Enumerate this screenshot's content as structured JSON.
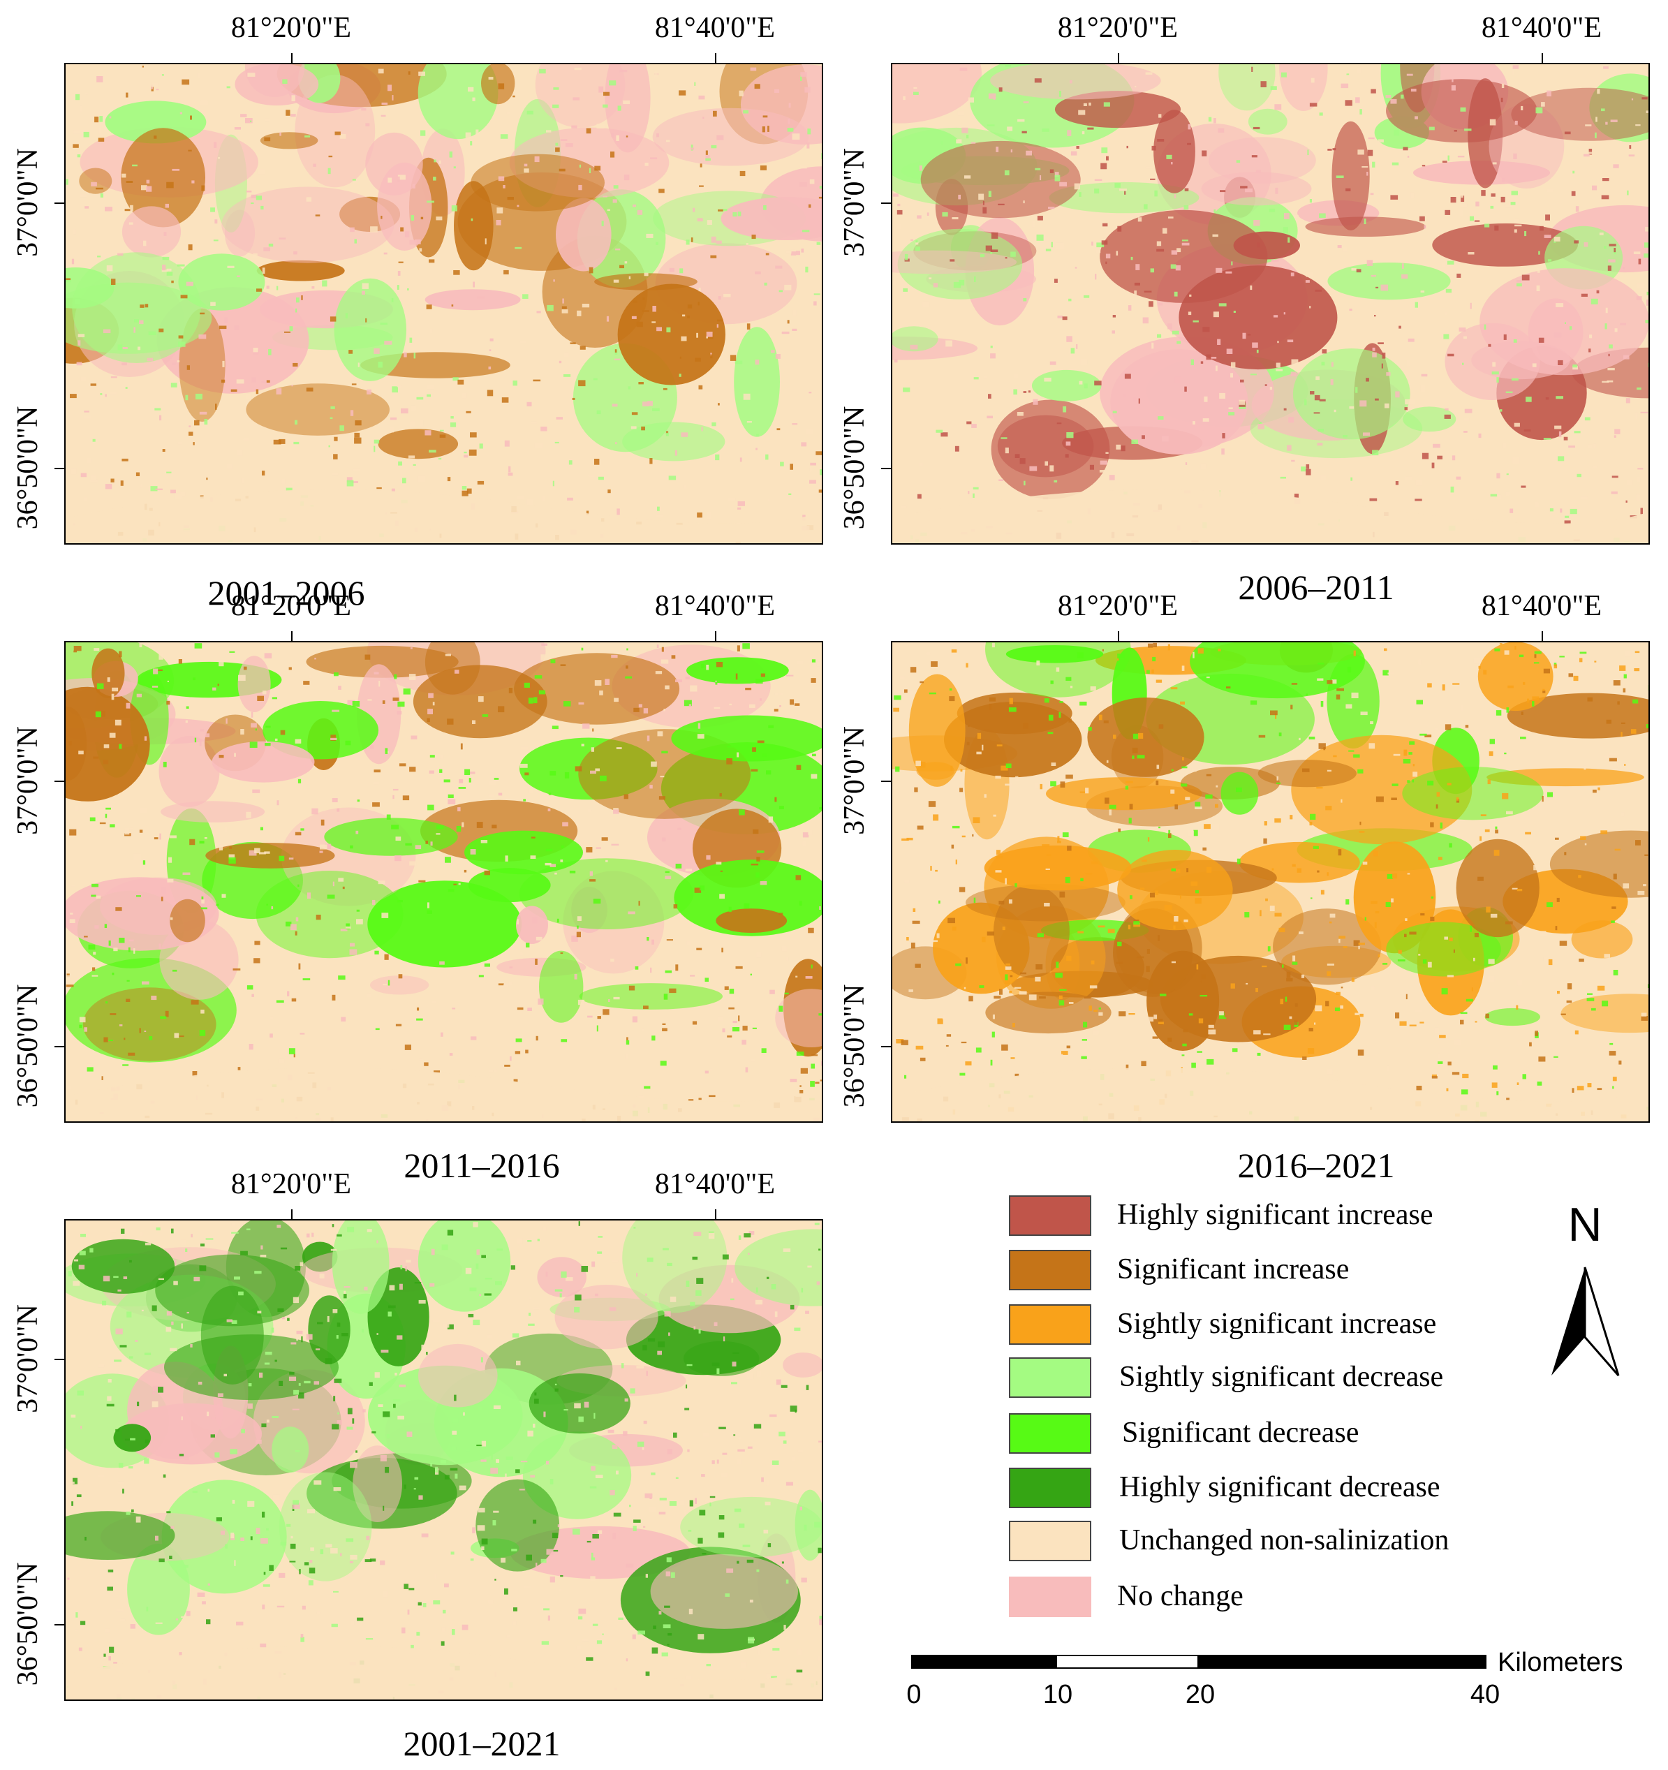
{
  "axes": {
    "lon_ticks": [
      "81°20'0\"E",
      "81°40'0\"E"
    ],
    "lat_ticks": [
      "37°0'0\"N",
      "36°50'0\"N"
    ]
  },
  "panels": [
    {
      "id": "p1",
      "label": "2001–2006",
      "dominant": [
        "no-change",
        "non-salinization",
        "slight-decrease",
        "significant-increase"
      ]
    },
    {
      "id": "p2",
      "label": "2006–2011",
      "dominant": [
        "no-change",
        "non-salinization",
        "slight-decrease",
        "highly-significant-increase"
      ]
    },
    {
      "id": "p3",
      "label": "2011–2016",
      "dominant": [
        "no-change",
        "non-salinization",
        "significant-increase",
        "significant-decrease"
      ]
    },
    {
      "id": "p4",
      "label": "2016–2021",
      "dominant": [
        "non-salinization",
        "significant-increase",
        "slightly-significant-increase",
        "significant-decrease"
      ]
    },
    {
      "id": "p5",
      "label": "2001–2021",
      "dominant": [
        "non-salinization",
        "slight-decrease",
        "highly-significant-decrease",
        "no-change"
      ]
    }
  ],
  "legend": [
    {
      "label": "Highly significant increase",
      "color": "#c0554a"
    },
    {
      "label": "Significant increase",
      "color": "#c57418"
    },
    {
      "label": "Sightly significant increase",
      "color": "#f9a21a"
    },
    {
      "label": "Sightly significant decrease",
      "color": "#a4fb82"
    },
    {
      "label": "Significant decrease",
      "color": "#57fa15"
    },
    {
      "label": "Highly significant decrease",
      "color": "#35a514"
    },
    {
      "label": "Unchanged non-salinization",
      "color": "#fbe3bf"
    },
    {
      "label": "No change",
      "color": "#f8bcbc"
    }
  ],
  "north_arrow": {
    "letter": "N"
  },
  "scale_bar": {
    "unit": "Kilometers",
    "ticks": [
      "0",
      "10",
      "20",
      "40"
    ]
  }
}
